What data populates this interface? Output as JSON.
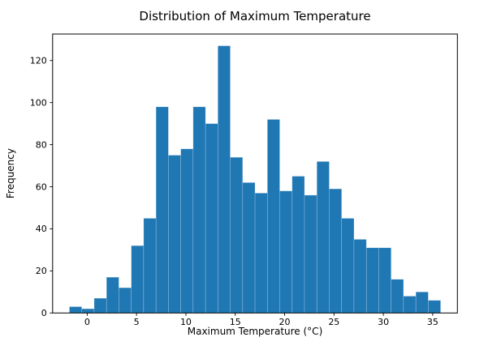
{
  "chart_data": {
    "type": "bar",
    "subtype": "histogram",
    "title": "Distribution of Maximum Temperature",
    "xlabel": "Maximum Temperature (°C)",
    "ylabel": "Frequency",
    "bins": 30,
    "bin_edges_range": [
      -1.8,
      35.8
    ],
    "counts": [
      3,
      2,
      7,
      17,
      12,
      32,
      45,
      98,
      75,
      78,
      98,
      90,
      127,
      74,
      62,
      57,
      92,
      58,
      65,
      56,
      72,
      59,
      45,
      35,
      31,
      31,
      16,
      8,
      10,
      6
    ],
    "xticks": [
      0,
      5,
      10,
      15,
      20,
      25,
      30,
      35
    ],
    "yticks": [
      0,
      20,
      40,
      60,
      80,
      100,
      120
    ],
    "xlim": [
      -3.5,
      37.5
    ],
    "ylim": [
      0,
      132.6
    ],
    "bar_color": "#1f77b4",
    "axis_color": "#000000",
    "background_color": "#ffffff",
    "grid": false,
    "legend": null
  }
}
